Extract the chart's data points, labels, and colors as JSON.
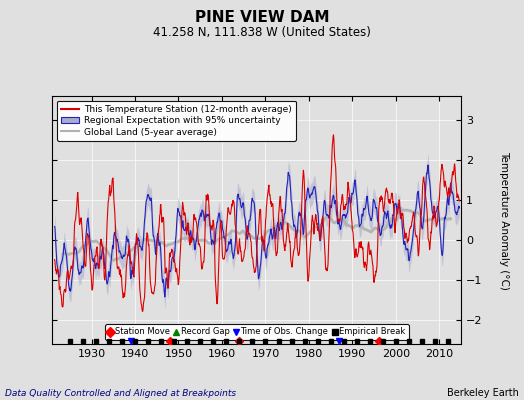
{
  "title": "PINE VIEW DAM",
  "subtitle": "41.258 N, 111.838 W (United States)",
  "xlabel_left": "Data Quality Controlled and Aligned at Breakpoints",
  "xlabel_right": "Berkeley Earth",
  "ylabel": "Temperature Anomaly (°C)",
  "xlim": [
    1921,
    2015
  ],
  "ylim": [
    -2.6,
    3.6
  ],
  "yticks": [
    -2,
    -1,
    0,
    1,
    2,
    3
  ],
  "xticks": [
    1930,
    1940,
    1950,
    1960,
    1970,
    1980,
    1990,
    2000,
    2010
  ],
  "bg_color": "#e0e0e0",
  "plot_bg_color": "#e0e0e0",
  "line_color_station": "#dd0000",
  "line_color_regional": "#2222bb",
  "line_color_global": "#b0b0b0",
  "uncertainty_color": "#aaaacc",
  "legend_labels": [
    "This Temperature Station (12-month average)",
    "Regional Expectation with 95% uncertainty",
    "Global Land (5-year average)"
  ],
  "marker_legend": [
    {
      "label": "Station Move",
      "color": "red",
      "marker": "D"
    },
    {
      "label": "Record Gap",
      "color": "green",
      "marker": "^"
    },
    {
      "label": "Time of Obs. Change",
      "color": "blue",
      "marker": "v"
    },
    {
      "label": "Empirical Break",
      "color": "black",
      "marker": "s"
    }
  ],
  "station_move_years": [
    1948,
    1964,
    1996
  ],
  "record_gap_years": [],
  "obs_change_years": [
    1939,
    1987
  ],
  "empirical_break_years": [
    1925,
    1928,
    1931,
    1934,
    1937,
    1940,
    1943,
    1946,
    1949,
    1952,
    1955,
    1958,
    1961,
    1964,
    1967,
    1970,
    1973,
    1976,
    1979,
    1982,
    1985,
    1988,
    1991,
    1994,
    1997,
    2000,
    2003,
    2006,
    2009,
    2012
  ]
}
